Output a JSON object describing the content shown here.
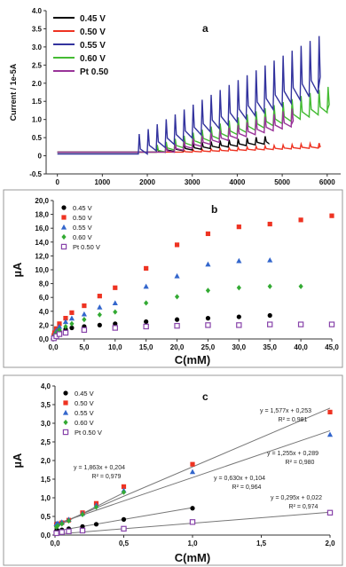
{
  "chart_data": [
    {
      "id": "a",
      "type": "line",
      "panel_label": "a",
      "title": "",
      "xlabel": "",
      "ylabel": "Current / 1e-5A",
      "xlim": [
        -250,
        6300
      ],
      "ylim": [
        -0.5,
        4.0
      ],
      "x_ticks": [
        "0",
        "1000",
        "2000",
        "3000",
        "4000",
        "5000",
        "6000"
      ],
      "y_ticks": [
        "-0.5",
        "0",
        "0.5",
        "1.0",
        "1.5",
        "2.0",
        "2.5",
        "3.0",
        "3.5",
        "4.0"
      ],
      "grid": false,
      "legend_position": "top-left",
      "step_size_s": 200,
      "series": [
        {
          "name": "0.45 V",
          "color": "#000000",
          "start": 0,
          "end": 4700,
          "plateau_start": 2200,
          "plateau_end": 4700,
          "baseline_start": 0.1,
          "baseline_end": 0.35,
          "peak_start": 0.25,
          "peak_end": 0.55
        },
        {
          "name": "0.50 V",
          "color": "#ee3322",
          "start": 0,
          "end": 5800,
          "plateau_start": 2800,
          "plateau_end": 5800,
          "baseline_start": 0.1,
          "baseline_end": 0.22,
          "peak_start": 0.15,
          "peak_end": 0.35
        },
        {
          "name": "0.55 V",
          "color": "#33339e",
          "start": 0,
          "end": 5800,
          "plateau_start": 1800,
          "plateau_end": 5800,
          "baseline_start": 0.05,
          "baseline_end": 1.8,
          "peak_start": 0.6,
          "peak_end": 3.3
        },
        {
          "name": "0.60 V",
          "color": "#44bb33",
          "start": 0,
          "end": 6000,
          "plateau_start": 2200,
          "plateau_end": 6000,
          "baseline_start": 0.1,
          "baseline_end": 1.25,
          "peak_start": 0.3,
          "peak_end": 1.9
        },
        {
          "name": "Pt 0.50",
          "color": "#993399",
          "start": 0,
          "end": 5200,
          "plateau_start": 2400,
          "plateau_end": 5200,
          "baseline_start": 0.1,
          "baseline_end": 0.85,
          "peak_start": 0.25,
          "peak_end": 1.3
        }
      ]
    },
    {
      "id": "b",
      "type": "scatter",
      "panel_label": "b",
      "title": "",
      "xlabel": "C(mM)",
      "ylabel": "µA",
      "xlim": [
        0,
        45
      ],
      "ylim": [
        0,
        20
      ],
      "x_ticks": [
        "0,0",
        "5,0",
        "10,0",
        "15,0",
        "20,0",
        "25,0",
        "30,0",
        "35,0",
        "40,0",
        "45,0"
      ],
      "y_ticks": [
        "0,0",
        "2,0",
        "4,0",
        "6,0",
        "8,0",
        "10,0",
        "12,0",
        "14,0",
        "16,0",
        "18,0",
        "20,0"
      ],
      "grid": false,
      "legend_position": "top-left",
      "series": [
        {
          "name": "0.45 V",
          "color": "#000000",
          "marker": "circle",
          "x": [
            0.1,
            0.2,
            0.5,
            1,
            2,
            3,
            5,
            7.5,
            10,
            15,
            20,
            25,
            30,
            35
          ],
          "y": [
            0.2,
            0.4,
            0.8,
            1.1,
            1.4,
            1.6,
            1.8,
            2.0,
            2.2,
            2.5,
            2.8,
            3.0,
            3.2,
            3.4
          ]
        },
        {
          "name": "0.50 V",
          "color": "#ee3322",
          "marker": "square",
          "x": [
            0.1,
            0.2,
            0.5,
            1,
            2,
            3,
            5,
            7.5,
            10,
            15,
            20,
            25,
            30,
            35,
            40,
            45
          ],
          "y": [
            0.5,
            0.9,
            1.5,
            2.2,
            3.0,
            3.8,
            4.8,
            6.2,
            7.4,
            10.2,
            13.6,
            15.2,
            16.2,
            16.6,
            17.2,
            17.8
          ]
        },
        {
          "name": "0.55 V",
          "color": "#3366cc",
          "marker": "triangle",
          "x": [
            0.1,
            0.2,
            0.5,
            1,
            2,
            3,
            5,
            7.5,
            10,
            15,
            20,
            25,
            30,
            35
          ],
          "y": [
            0.4,
            0.7,
            1.2,
            1.8,
            2.5,
            3.0,
            3.6,
            4.6,
            5.2,
            7.6,
            9.1,
            10.8,
            11.3,
            11.4
          ]
        },
        {
          "name": "0.60 V",
          "color": "#33aa33",
          "marker": "diamond",
          "x": [
            0.1,
            0.2,
            0.5,
            1,
            2,
            3,
            5,
            7.5,
            10,
            15,
            20,
            25,
            30,
            35,
            40
          ],
          "y": [
            0.3,
            0.5,
            0.9,
            1.3,
            1.8,
            2.2,
            2.8,
            3.5,
            3.9,
            5.2,
            6.1,
            7.0,
            7.4,
            7.6,
            7.6
          ]
        },
        {
          "name": "Pt 0.50 V",
          "color": "#8844aa",
          "marker": "open-square",
          "x": [
            0.1,
            0.5,
            1,
            2,
            5,
            10,
            15,
            20,
            25,
            30,
            35,
            40,
            45
          ],
          "y": [
            0.1,
            0.4,
            0.7,
            0.9,
            1.3,
            1.6,
            1.8,
            1.9,
            2.0,
            2.0,
            2.1,
            2.1,
            2.1
          ]
        }
      ]
    },
    {
      "id": "c",
      "type": "scatter",
      "panel_label": "c",
      "title": "",
      "xlabel": "C(mM)",
      "ylabel": "µA",
      "xlim": [
        0,
        2
      ],
      "ylim": [
        0,
        4
      ],
      "x_ticks": [
        "0,0",
        "0,5",
        "1,0",
        "1,5",
        "2,0"
      ],
      "y_ticks": [
        "0,0",
        "0,5",
        "1,0",
        "1,5",
        "2,0",
        "2,5",
        "3,0",
        "3,5",
        "4,0"
      ],
      "grid": false,
      "legend_position": "top-left",
      "series": [
        {
          "name": "0.45 V",
          "color": "#000000",
          "marker": "circle",
          "x": [
            0.01,
            0.02,
            0.05,
            0.1,
            0.2,
            0.3,
            0.5,
            1.0
          ],
          "y": [
            0.11,
            0.12,
            0.14,
            0.17,
            0.23,
            0.29,
            0.42,
            0.72
          ],
          "fit": {
            "slope": 0.63,
            "intercept": 0.104,
            "x_end": 1.0,
            "equation": "y = 0,630x + 0,104",
            "r2": "R² = 0,964"
          }
        },
        {
          "name": "0.50 V",
          "color": "#ee3322",
          "marker": "square",
          "x": [
            0.01,
            0.02,
            0.05,
            0.1,
            0.2,
            0.3,
            0.5,
            1.0,
            2.0
          ],
          "y": [
            0.28,
            0.3,
            0.33,
            0.4,
            0.6,
            0.85,
            1.3,
            1.9,
            3.3
          ],
          "fit": {
            "slope": 1.577,
            "intercept": 0.253,
            "x_end": 2.0,
            "equation": "y = 1,577x + 0,253",
            "r2": "R² = 0,981"
          }
        },
        {
          "name": "0.55 V",
          "color": "#3366cc",
          "marker": "triangle",
          "x": [
            0.01,
            0.02,
            0.05,
            0.1,
            0.2,
            0.3,
            0.5,
            1.0,
            2.0
          ],
          "y": [
            0.3,
            0.32,
            0.35,
            0.42,
            0.58,
            0.8,
            1.2,
            1.7,
            2.7
          ],
          "fit": {
            "slope": 1.255,
            "intercept": 0.289,
            "x_end": 2.0,
            "equation": "y = 1,255x + 0,289",
            "r2": "R² = 0,980"
          }
        },
        {
          "name": "0.60 V",
          "color": "#33aa33",
          "marker": "diamond",
          "x": [
            0.01,
            0.02,
            0.05,
            0.1,
            0.2,
            0.3,
            0.5
          ],
          "y": [
            0.22,
            0.25,
            0.3,
            0.38,
            0.55,
            0.75,
            1.15
          ],
          "fit": {
            "slope": 1.863,
            "intercept": 0.204,
            "x_end": 0.5,
            "equation": "y = 1,863x + 0,204",
            "r2": "R² = 0,979"
          }
        },
        {
          "name": "Pt 0.50 V",
          "color": "#8844aa",
          "marker": "open-square",
          "x": [
            0.01,
            0.05,
            0.1,
            0.2,
            0.5,
            1.0,
            2.0
          ],
          "y": [
            0.05,
            0.08,
            0.1,
            0.12,
            0.17,
            0.35,
            0.6
          ],
          "fit": {
            "slope": 0.295,
            "intercept": 0.022,
            "x_end": 2.0,
            "equation": "y = 0,295x + 0,022",
            "r2": "R² = 0,974"
          }
        }
      ]
    }
  ]
}
